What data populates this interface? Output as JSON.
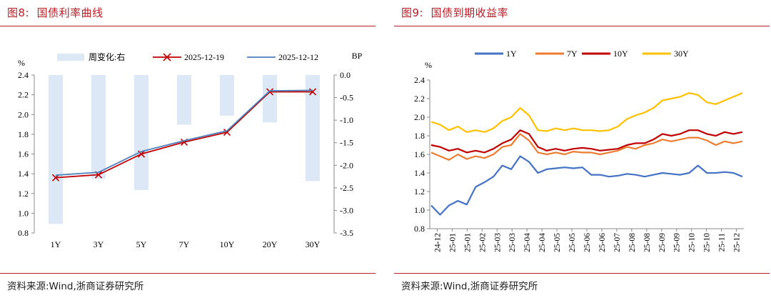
{
  "left": {
    "title": "图8:  国债利率曲线",
    "source": "资料来源:Wind,浙商证券研究所",
    "chart_data": {
      "type": "bar+line",
      "categories": [
        "1Y",
        "3Y",
        "5Y",
        "7Y",
        "10Y",
        "20Y",
        "30Y"
      ],
      "ylabel": "%",
      "y2label": "BP",
      "ylim": [
        0.8,
        2.4
      ],
      "y2lim": [
        -3.5,
        0.0
      ],
      "yticks": [
        "2.4",
        "2.2",
        "2.0",
        "1.8",
        "1.6",
        "1.4",
        "1.2",
        "1.0",
        "0.8"
      ],
      "y2ticks": [
        "0.0",
        "-0.5",
        "-1.0",
        "-1.5",
        "-2.0",
        "-2.5",
        "-3.0",
        "-3.5"
      ],
      "legend_position": "top",
      "grid": false,
      "series": [
        {
          "name": "周变化:右",
          "type": "bar",
          "axis": "right",
          "color": "#dce8f5",
          "values": [
            -3.3,
            -2.3,
            -2.55,
            -1.1,
            -0.9,
            -1.05,
            -2.35
          ]
        },
        {
          "name": "2025-12-19",
          "type": "line",
          "marker": "x",
          "color": "#c00000",
          "values": [
            1.36,
            1.39,
            1.6,
            1.72,
            1.82,
            2.23,
            2.23
          ]
        },
        {
          "name": "2025-12-12",
          "type": "line",
          "color": "#4f81bd",
          "values": [
            1.385,
            1.415,
            1.625,
            1.735,
            1.835,
            2.24,
            2.245
          ]
        }
      ]
    }
  },
  "right": {
    "title": "图9:  国债到期收益率",
    "source": "资料来源:Wind,浙商证券研究所",
    "chart_data": {
      "type": "line",
      "ylabel": "%",
      "ylim": [
        0.8,
        2.4
      ],
      "yticks": [
        "2.4",
        "2.2",
        "2.0",
        "1.8",
        "1.6",
        "1.4",
        "1.2",
        "1.0",
        "0.8"
      ],
      "xticks": [
        "24-12",
        "25-01",
        "25-01",
        "25-02",
        "25-03",
        "25-03",
        "25-04",
        "25-04",
        "25-05",
        "25-05",
        "25-06",
        "25-06",
        "25-07",
        "25-08",
        "25-08",
        "25-09",
        "25-09",
        "25-10",
        "25-10",
        "25-11",
        "25-12"
      ],
      "legend_position": "top",
      "grid": false,
      "series": [
        {
          "name": "1Y",
          "color": "#4472c4",
          "values": [
            1.05,
            0.95,
            1.05,
            1.1,
            1.06,
            1.25,
            1.3,
            1.36,
            1.48,
            1.44,
            1.58,
            1.52,
            1.4,
            1.44,
            1.45,
            1.46,
            1.45,
            1.46,
            1.38,
            1.38,
            1.36,
            1.37,
            1.39,
            1.38,
            1.36,
            1.38,
            1.4,
            1.39,
            1.38,
            1.4,
            1.48,
            1.4,
            1.4,
            1.41,
            1.4,
            1.36
          ]
        },
        {
          "name": "7Y",
          "color": "#ed7d31",
          "values": [
            1.62,
            1.58,
            1.54,
            1.6,
            1.55,
            1.58,
            1.56,
            1.6,
            1.68,
            1.7,
            1.82,
            1.75,
            1.62,
            1.6,
            1.62,
            1.6,
            1.63,
            1.62,
            1.62,
            1.6,
            1.62,
            1.64,
            1.68,
            1.66,
            1.7,
            1.72,
            1.76,
            1.74,
            1.76,
            1.78,
            1.78,
            1.75,
            1.7,
            1.74,
            1.72,
            1.74
          ]
        },
        {
          "name": "10Y",
          "color": "#c00000",
          "values": [
            1.7,
            1.68,
            1.64,
            1.66,
            1.62,
            1.64,
            1.62,
            1.66,
            1.72,
            1.76,
            1.86,
            1.82,
            1.68,
            1.64,
            1.66,
            1.64,
            1.66,
            1.67,
            1.66,
            1.64,
            1.65,
            1.66,
            1.7,
            1.72,
            1.72,
            1.76,
            1.82,
            1.8,
            1.82,
            1.86,
            1.86,
            1.82,
            1.8,
            1.84,
            1.82,
            1.84
          ]
        },
        {
          "name": "30Y",
          "color": "#ffc000",
          "values": [
            1.95,
            1.92,
            1.86,
            1.9,
            1.84,
            1.86,
            1.84,
            1.88,
            1.96,
            2.0,
            2.1,
            2.02,
            1.86,
            1.85,
            1.88,
            1.86,
            1.88,
            1.86,
            1.86,
            1.85,
            1.86,
            1.9,
            1.98,
            2.02,
            2.05,
            2.1,
            2.18,
            2.2,
            2.22,
            2.26,
            2.24,
            2.16,
            2.14,
            2.18,
            2.22,
            2.26
          ]
        }
      ]
    }
  }
}
